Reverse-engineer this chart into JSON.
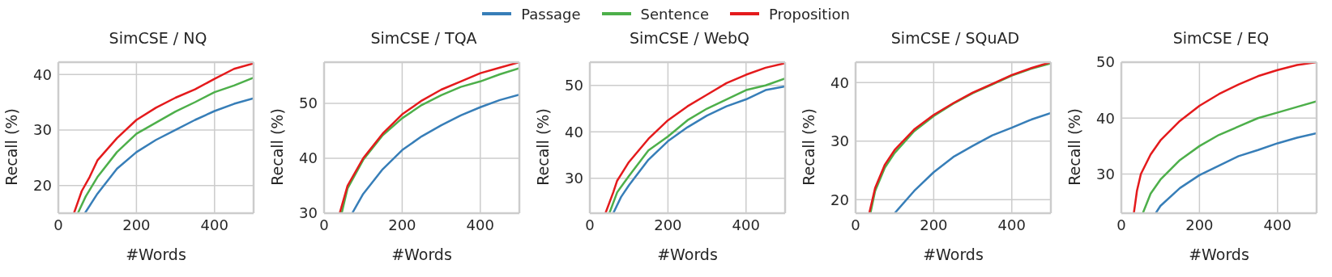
{
  "chart_data": [
    {
      "type": "line",
      "title": "SimCSE / NQ",
      "xlabel": "#Words",
      "ylabel": "Recall (%)",
      "xlim": [
        0,
        500
      ],
      "xticks": [
        0,
        200,
        400
      ],
      "ylim": [
        15,
        42.2
      ],
      "yticks": [
        20,
        30,
        40
      ],
      "grid": true,
      "legend": "top",
      "series": [
        {
          "name": "Passage",
          "color": "#377eb8",
          "x": [
            68,
            100,
            150,
            200,
            250,
            300,
            350,
            400,
            450,
            500
          ],
          "values": [
            15,
            18.5,
            23,
            26,
            28.2,
            30,
            31.8,
            33.4,
            34.7,
            35.7
          ]
        },
        {
          "name": "Sentence",
          "color": "#4daf4a",
          "x": [
            50,
            70,
            100,
            150,
            200,
            250,
            300,
            350,
            400,
            450,
            500
          ],
          "values": [
            15,
            18,
            21.5,
            26,
            29.3,
            31.3,
            33.3,
            35,
            36.8,
            38,
            39.4
          ]
        },
        {
          "name": "Proposition",
          "color": "#e41a1c",
          "x": [
            40,
            60,
            80,
            100,
            150,
            200,
            250,
            300,
            350,
            400,
            450,
            500
          ],
          "values": [
            15,
            19,
            21.5,
            24.5,
            28.5,
            31.8,
            34,
            35.8,
            37.3,
            39.2,
            41,
            42
          ]
        }
      ]
    },
    {
      "type": "line",
      "title": "SimCSE / TQA",
      "xlabel": "#Words",
      "ylabel": "Recall (%)",
      "xlim": [
        0,
        500
      ],
      "xticks": [
        0,
        200,
        400
      ],
      "ylim": [
        30,
        57.5
      ],
      "yticks": [
        30,
        40,
        50
      ],
      "grid": true,
      "series": [
        {
          "color": "#377eb8",
          "x": [
            72,
            100,
            150,
            200,
            250,
            300,
            350,
            400,
            450,
            500
          ],
          "values": [
            30,
            33.5,
            38,
            41.5,
            44,
            46,
            47.8,
            49.3,
            50.6,
            51.6
          ]
        },
        {
          "color": "#4daf4a",
          "x": [
            45,
            60,
            100,
            150,
            200,
            250,
            300,
            350,
            400,
            450,
            500
          ],
          "values": [
            30,
            34.5,
            39.7,
            44.2,
            47.3,
            49.7,
            51.5,
            53,
            54,
            55.3,
            56.4
          ]
        },
        {
          "color": "#e41a1c",
          "x": [
            40,
            60,
            100,
            150,
            200,
            250,
            300,
            350,
            400,
            450,
            500
          ],
          "values": [
            30,
            35,
            40,
            44.5,
            48,
            50.5,
            52.5,
            54,
            55.5,
            56.5,
            57.5
          ]
        }
      ]
    },
    {
      "type": "line",
      "title": "SimCSE / WebQ",
      "xlabel": "#Words",
      "ylabel": "Recall (%)",
      "xlim": [
        0,
        500
      ],
      "xticks": [
        0,
        200,
        400
      ],
      "ylim": [
        22.5,
        55
      ],
      "yticks": [
        30,
        40,
        50
      ],
      "grid": true,
      "series": [
        {
          "color": "#377eb8",
          "x": [
            60,
            80,
            100,
            150,
            200,
            250,
            300,
            350,
            400,
            450,
            500
          ],
          "values": [
            22.5,
            26,
            28.5,
            34,
            38,
            41,
            43.5,
            45.5,
            47,
            49,
            49.8
          ]
        },
        {
          "color": "#4daf4a",
          "x": [
            50,
            70,
            100,
            150,
            200,
            250,
            300,
            350,
            400,
            450,
            500
          ],
          "values": [
            22.5,
            27,
            30.5,
            36,
            39,
            42.5,
            45,
            47,
            49,
            50,
            51.5
          ]
        },
        {
          "color": "#e41a1c",
          "x": [
            40,
            60,
            70,
            100,
            150,
            200,
            250,
            300,
            350,
            400,
            450,
            500
          ],
          "values": [
            22.5,
            27,
            29.5,
            33.5,
            38.5,
            42.5,
            45.5,
            48,
            50.5,
            52.3,
            53.8,
            54.8
          ]
        }
      ]
    },
    {
      "type": "line",
      "title": "SimCSE / SQuAD",
      "xlabel": "#Words",
      "ylabel": "Recall (%)",
      "xlim": [
        0,
        500
      ],
      "xticks": [
        0,
        200,
        400
      ],
      "ylim": [
        17.7,
        43.5
      ],
      "yticks": [
        20,
        30,
        40
      ],
      "grid": true,
      "series": [
        {
          "color": "#377eb8",
          "x": [
            100,
            150,
            200,
            250,
            300,
            350,
            400,
            450,
            500
          ],
          "values": [
            17.7,
            21.5,
            24.7,
            27.3,
            29.2,
            31,
            32.3,
            33.7,
            34.8
          ]
        },
        {
          "color": "#4daf4a",
          "x": [
            38,
            50,
            75,
            100,
            150,
            200,
            250,
            300,
            350,
            400,
            450,
            500
          ],
          "values": [
            17.7,
            21.5,
            25.5,
            28,
            31.7,
            34.3,
            36.4,
            38.2,
            39.7,
            41.2,
            42.4,
            43.3
          ]
        },
        {
          "color": "#e41a1c",
          "x": [
            35,
            50,
            75,
            100,
            150,
            200,
            250,
            300,
            350,
            400,
            450,
            500
          ],
          "values": [
            17.7,
            22,
            26,
            28.5,
            32,
            34.5,
            36.5,
            38.3,
            39.8,
            41.3,
            42.5,
            43.5
          ]
        }
      ]
    },
    {
      "type": "line",
      "title": "SimCSE / EQ",
      "xlabel": "#Words",
      "ylabel": "Recall (%)",
      "xlim": [
        0,
        500
      ],
      "xticks": [
        0,
        200,
        400
      ],
      "ylim": [
        23,
        50
      ],
      "yticks": [
        30,
        40,
        50
      ],
      "grid": true,
      "series": [
        {
          "color": "#377eb8",
          "x": [
            88,
            100,
            150,
            200,
            250,
            300,
            350,
            400,
            450,
            500
          ],
          "values": [
            23,
            24.3,
            27.5,
            29.8,
            31.5,
            33.2,
            34.3,
            35.5,
            36.5,
            37.3
          ]
        },
        {
          "color": "#4daf4a",
          "x": [
            55,
            75,
            100,
            150,
            200,
            250,
            300,
            350,
            400,
            450,
            500
          ],
          "values": [
            23,
            26.5,
            29,
            32.5,
            35,
            37,
            38.5,
            40,
            41,
            42,
            43
          ]
        },
        {
          "color": "#e41a1c",
          "x": [
            32,
            40,
            50,
            75,
            100,
            150,
            200,
            250,
            300,
            350,
            400,
            450,
            500
          ],
          "values": [
            23,
            27,
            30,
            33.5,
            36,
            39.5,
            42.2,
            44.3,
            46,
            47.5,
            48.6,
            49.5,
            50
          ]
        }
      ]
    }
  ]
}
